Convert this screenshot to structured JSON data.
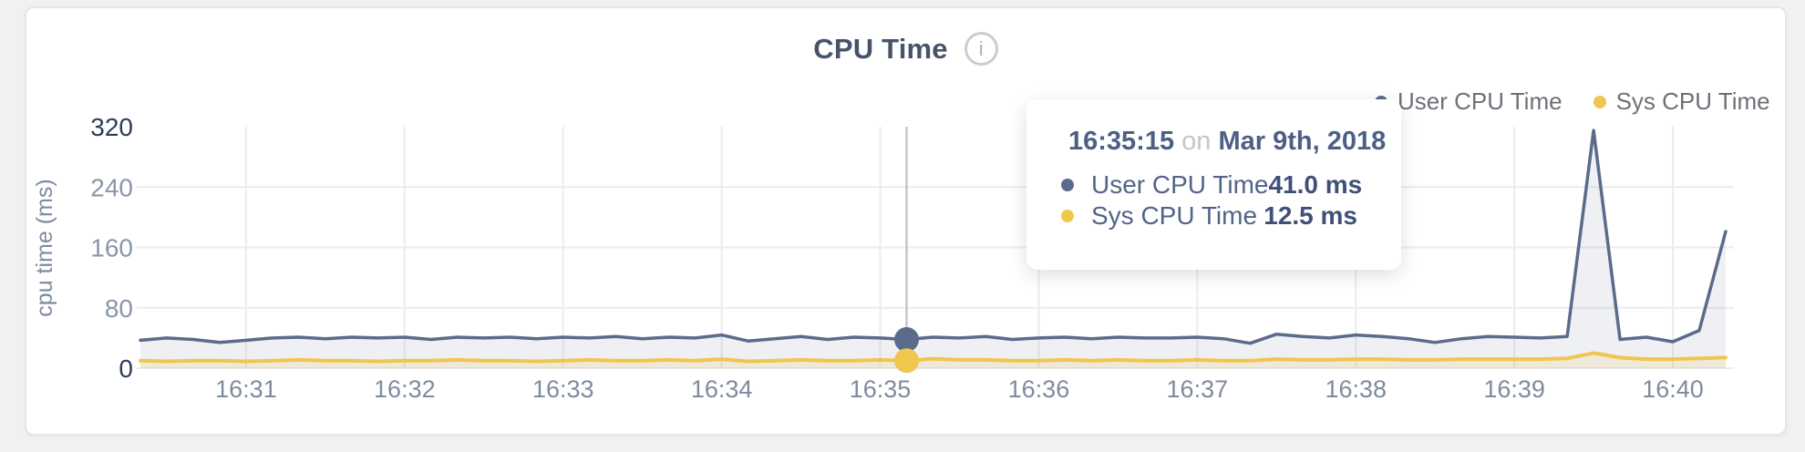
{
  "header": {
    "title": "CPU Time",
    "info_glyph": "i"
  },
  "legend": {
    "items": [
      {
        "label": "User CPU Time",
        "color": "#5b6b8c"
      },
      {
        "label": "Sys CPU Time",
        "color": "#f0c64f"
      }
    ]
  },
  "tooltip": {
    "time": "16:35:15",
    "conjunction": "on",
    "date": "Mar 9th, 2018",
    "rows": [
      {
        "label": "User CPU Time",
        "value": "41.0 ms",
        "color": "#5b6b8c"
      },
      {
        "label": "Sys CPU Time",
        "value": "12.5 ms",
        "color": "#f0c64f"
      }
    ]
  },
  "chart_data": {
    "type": "area",
    "title": "CPU Time",
    "xlabel": "",
    "ylabel": "cpu time (ms)",
    "x_domain": [
      "16:30:20",
      "16:40:20"
    ],
    "y_domain": [
      0,
      320
    ],
    "y_ticks": [
      0,
      80,
      160,
      240,
      320
    ],
    "x_ticks": [
      "16:31",
      "16:32",
      "16:33",
      "16:34",
      "16:35",
      "16:36",
      "16:37",
      "16:38",
      "16:39",
      "16:40"
    ],
    "grid": true,
    "legend_position": "top-right",
    "x": [
      "16:30:20",
      "16:30:30",
      "16:30:40",
      "16:30:50",
      "16:31:00",
      "16:31:10",
      "16:31:20",
      "16:31:30",
      "16:31:40",
      "16:31:50",
      "16:32:00",
      "16:32:10",
      "16:32:20",
      "16:32:30",
      "16:32:40",
      "16:32:50",
      "16:33:00",
      "16:33:10",
      "16:33:20",
      "16:33:30",
      "16:33:40",
      "16:33:50",
      "16:34:00",
      "16:34:10",
      "16:34:20",
      "16:34:30",
      "16:34:40",
      "16:34:50",
      "16:35:00",
      "16:35:10",
      "16:35:20",
      "16:35:30",
      "16:35:40",
      "16:35:50",
      "16:36:00",
      "16:36:10",
      "16:36:20",
      "16:36:30",
      "16:36:40",
      "16:36:50",
      "16:37:00",
      "16:37:10",
      "16:37:20",
      "16:37:30",
      "16:37:40",
      "16:37:50",
      "16:38:00",
      "16:38:10",
      "16:38:20",
      "16:38:30",
      "16:38:40",
      "16:38:50",
      "16:39:00",
      "16:39:10",
      "16:39:20",
      "16:39:30",
      "16:39:40",
      "16:39:50",
      "16:40:00",
      "16:40:10",
      "16:40:20"
    ],
    "series": [
      {
        "name": "User CPU Time",
        "color": "#5b6b8c",
        "fill": "rgba(91,107,140,0.10)",
        "width": 3.5,
        "values": [
          37,
          40,
          38,
          34,
          37,
          40,
          41,
          39,
          41,
          40,
          41,
          38,
          41,
          40,
          41,
          39,
          41,
          40,
          42,
          39,
          41,
          40,
          44,
          36,
          39,
          42,
          38,
          41,
          40,
          38,
          41,
          40,
          42,
          38,
          40,
          41,
          39,
          41,
          40,
          40,
          41,
          39,
          33,
          45,
          42,
          40,
          44,
          42,
          39,
          34,
          39,
          42,
          41,
          40,
          42,
          315,
          38,
          41,
          35,
          50,
          181
        ]
      },
      {
        "name": "Sys CPU Time",
        "color": "#f0c64f",
        "fill": "rgba(240,198,79,0.16)",
        "width": 4,
        "values": [
          10,
          9,
          10,
          10,
          9,
          10,
          11,
          10,
          10,
          9,
          10,
          10,
          11,
          10,
          10,
          9,
          10,
          11,
          10,
          10,
          11,
          10,
          12,
          9,
          10,
          11,
          10,
          10,
          11,
          10,
          12.5,
          11,
          11,
          10,
          10,
          11,
          10,
          11,
          10,
          10,
          11,
          10,
          10,
          12,
          11,
          11,
          12,
          12,
          11,
          11,
          12,
          12,
          12,
          12,
          13,
          20,
          14,
          12,
          12,
          13,
          14
        ]
      }
    ]
  }
}
